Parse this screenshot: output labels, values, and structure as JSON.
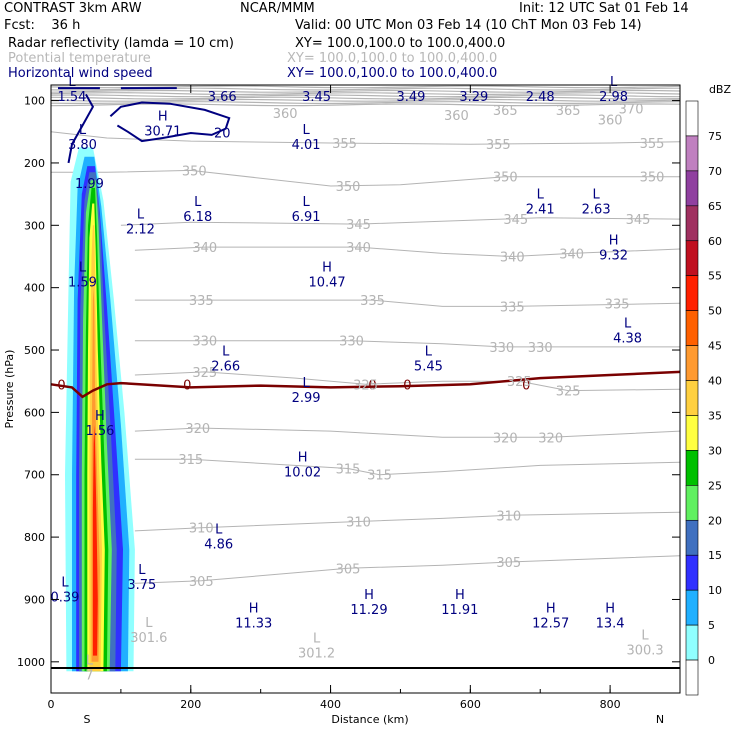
{
  "header": {
    "model": "CONTRAST  3km ARW",
    "org": "NCAR/MMM",
    "init": "Init: 12 UTC Sat 01 Feb 14",
    "fcst": "Fcst:    36 h",
    "valid": "Valid: 00 UTC Mon 03 Feb 14 (10 ChT Mon 03 Feb 14)",
    "field1_name": "Radar reflectivity (lamda = 10 cm)",
    "field1_xy": "XY= 100.0,100.0 to 100.0,400.0",
    "field2_name": "Potential temperature",
    "field2_xy": "XY= 100.0,100.0 to 100.0,400.0",
    "field3_name": "Horizontal wind speed",
    "field3_xy": "XY= 100.0,100.0 to 100.0,400.0"
  },
  "colors": {
    "theta": "#b4b4b4",
    "wind": "#000080",
    "freezing": "#7a0000"
  },
  "chart_data": {
    "type": "cross-section",
    "xlabel": "Distance (km)",
    "ylabel": "Pressure (hPa)",
    "xlim": [
      0,
      900
    ],
    "ylim": [
      1050,
      75
    ],
    "x_ticks": [
      0,
      200,
      400,
      600,
      800
    ],
    "y_ticks": [
      100,
      200,
      300,
      400,
      500,
      600,
      700,
      800,
      900,
      1000
    ],
    "endpoints": {
      "left": "S",
      "right": "N"
    },
    "colorbar": {
      "title": "dBZ",
      "levels": [
        "75",
        "70",
        "65",
        "60",
        "55",
        "50",
        "45",
        "40",
        "35",
        "30",
        "25",
        "20",
        "15",
        "10",
        "5",
        "0"
      ],
      "colors": [
        "#ffffff",
        "#c080c0",
        "#9040a0",
        "#a03060",
        "#c01020",
        "#ff2000",
        "#ff6000",
        "#ff9a30",
        "#ffd040",
        "#ffff40",
        "#00c000",
        "#60f060",
        "#4070c0",
        "#3030ff",
        "#20b0ff",
        "#90ffff",
        "#ffffff"
      ]
    },
    "theta_labels": [
      {
        "text": "370",
        "x": 830,
        "p": 113
      },
      {
        "text": "360",
        "x": 335,
        "p": 120
      },
      {
        "text": "360",
        "x": 580,
        "p": 123
      },
      {
        "text": "360",
        "x": 800,
        "p": 130
      },
      {
        "text": "365",
        "x": 650,
        "p": 115
      },
      {
        "text": "365",
        "x": 740,
        "p": 115
      },
      {
        "text": "355",
        "x": 420,
        "p": 168
      },
      {
        "text": "355",
        "x": 640,
        "p": 170
      },
      {
        "text": "355",
        "x": 860,
        "p": 168
      },
      {
        "text": "350",
        "x": 205,
        "p": 212
      },
      {
        "text": "350",
        "x": 425,
        "p": 237
      },
      {
        "text": "350",
        "x": 650,
        "p": 222
      },
      {
        "text": "350",
        "x": 860,
        "p": 222
      },
      {
        "text": "345",
        "x": 440,
        "p": 298
      },
      {
        "text": "345",
        "x": 665,
        "p": 290
      },
      {
        "text": "345",
        "x": 840,
        "p": 290
      },
      {
        "text": "340",
        "x": 220,
        "p": 335
      },
      {
        "text": "340",
        "x": 440,
        "p": 335
      },
      {
        "text": "340",
        "x": 660,
        "p": 350
      },
      {
        "text": "340",
        "x": 745,
        "p": 345
      },
      {
        "text": "335",
        "x": 215,
        "p": 420
      },
      {
        "text": "335",
        "x": 460,
        "p": 420
      },
      {
        "text": "335",
        "x": 660,
        "p": 430
      },
      {
        "text": "335",
        "x": 810,
        "p": 425
      },
      {
        "text": "330",
        "x": 220,
        "p": 485
      },
      {
        "text": "330",
        "x": 430,
        "p": 485
      },
      {
        "text": "330",
        "x": 645,
        "p": 495
      },
      {
        "text": "330",
        "x": 700,
        "p": 495
      },
      {
        "text": "325",
        "x": 220,
        "p": 535
      },
      {
        "text": "325",
        "x": 450,
        "p": 555
      },
      {
        "text": "325",
        "x": 670,
        "p": 550
      },
      {
        "text": "325",
        "x": 740,
        "p": 565
      },
      {
        "text": "320",
        "x": 210,
        "p": 625
      },
      {
        "text": "320",
        "x": 650,
        "p": 640
      },
      {
        "text": "320",
        "x": 715,
        "p": 640
      },
      {
        "text": "315",
        "x": 200,
        "p": 675
      },
      {
        "text": "315",
        "x": 425,
        "p": 690
      },
      {
        "text": "315",
        "x": 470,
        "p": 700
      },
      {
        "text": "310",
        "x": 215,
        "p": 785
      },
      {
        "text": "310",
        "x": 440,
        "p": 775
      },
      {
        "text": "310",
        "x": 655,
        "p": 765
      },
      {
        "text": "305",
        "x": 215,
        "p": 870
      },
      {
        "text": "305",
        "x": 425,
        "p": 850
      },
      {
        "text": "305",
        "x": 655,
        "p": 840
      }
    ],
    "wind_labels": [
      {
        "kind": "L",
        "value": "1.54",
        "x": 30,
        "p": 93
      },
      {
        "kind": "",
        "value": "3.66",
        "x": 245,
        "p": 93
      },
      {
        "kind": "",
        "value": "3.45",
        "x": 380,
        "p": 93
      },
      {
        "kind": "",
        "value": "3.49",
        "x": 515,
        "p": 93
      },
      {
        "kind": "",
        "value": "3.29",
        "x": 605,
        "p": 93
      },
      {
        "kind": "",
        "value": "2.48",
        "x": 700,
        "p": 93
      },
      {
        "kind": "L",
        "value": "2.98",
        "x": 805,
        "p": 93
      },
      {
        "kind": "L",
        "value": "3.80",
        "x": 45,
        "p": 170
      },
      {
        "kind": "H",
        "value": "30.71",
        "x": 160,
        "p": 148
      },
      {
        "kind": "",
        "value": "20",
        "x": 245,
        "p": 151
      },
      {
        "kind": "L",
        "value": "4.01",
        "x": 365,
        "p": 170
      },
      {
        "kind": "",
        "value": "1.99",
        "x": 55,
        "p": 232
      },
      {
        "kind": "L",
        "value": "2.12",
        "x": 128,
        "p": 305
      },
      {
        "kind": "L",
        "value": "6.18",
        "x": 210,
        "p": 285
      },
      {
        "kind": "L",
        "value": "6.91",
        "x": 365,
        "p": 285
      },
      {
        "kind": "L",
        "value": "2.41",
        "x": 700,
        "p": 273
      },
      {
        "kind": "L",
        "value": "2.63",
        "x": 780,
        "p": 273
      },
      {
        "kind": "H",
        "value": "9.32",
        "x": 805,
        "p": 347
      },
      {
        "kind": "L",
        "value": "1.59",
        "x": 45,
        "p": 390
      },
      {
        "kind": "H",
        "value": "10.47",
        "x": 395,
        "p": 390
      },
      {
        "kind": "L",
        "value": "4.38",
        "x": 825,
        "p": 480
      },
      {
        "kind": "L",
        "value": "2.66",
        "x": 250,
        "p": 525
      },
      {
        "kind": "L",
        "value": "5.45",
        "x": 540,
        "p": 525
      },
      {
        "kind": "L",
        "value": "2.99",
        "x": 365,
        "p": 575
      },
      {
        "kind": "H",
        "value": "1.56",
        "x": 70,
        "p": 628
      },
      {
        "kind": "H",
        "value": "10.02",
        "x": 360,
        "p": 695
      },
      {
        "kind": "L",
        "value": "4.86",
        "x": 240,
        "p": 810
      },
      {
        "kind": "L",
        "value": "3.75",
        "x": 130,
        "p": 875
      },
      {
        "kind": "L",
        "value": "0.39",
        "x": 20,
        "p": 895
      },
      {
        "kind": "H",
        "value": "11.33",
        "x": 290,
        "p": 937
      },
      {
        "kind": "H",
        "value": "11.29",
        "x": 455,
        "p": 915
      },
      {
        "kind": "H",
        "value": "11.91",
        "x": 585,
        "p": 915
      },
      {
        "kind": "H",
        "value": "12.57",
        "x": 715,
        "p": 937
      },
      {
        "kind": "H",
        "value": "13.4",
        "x": 800,
        "p": 937
      }
    ],
    "theta_minmax": [
      {
        "kind": "L",
        "value": "301.6",
        "x": 140,
        "p": 960
      },
      {
        "kind": "L",
        "value": "301.2",
        "x": 380,
        "p": 985
      },
      {
        "kind": "L",
        "value": "300.3",
        "x": 850,
        "p": 980
      },
      {
        "kind": "L",
        "value": "7",
        "x": 55,
        "p": 1020
      }
    ],
    "freezing_level": {
      "label": "0",
      "points": [
        [
          0,
          555
        ],
        [
          30,
          560
        ],
        [
          45,
          575
        ],
        [
          60,
          565
        ],
        [
          80,
          555
        ],
        [
          100,
          553
        ],
        [
          200,
          560
        ],
        [
          300,
          557
        ],
        [
          400,
          560
        ],
        [
          500,
          558
        ],
        [
          600,
          555
        ],
        [
          700,
          545
        ],
        [
          800,
          540
        ],
        [
          900,
          535
        ]
      ]
    },
    "terrain_p": 1010
  }
}
